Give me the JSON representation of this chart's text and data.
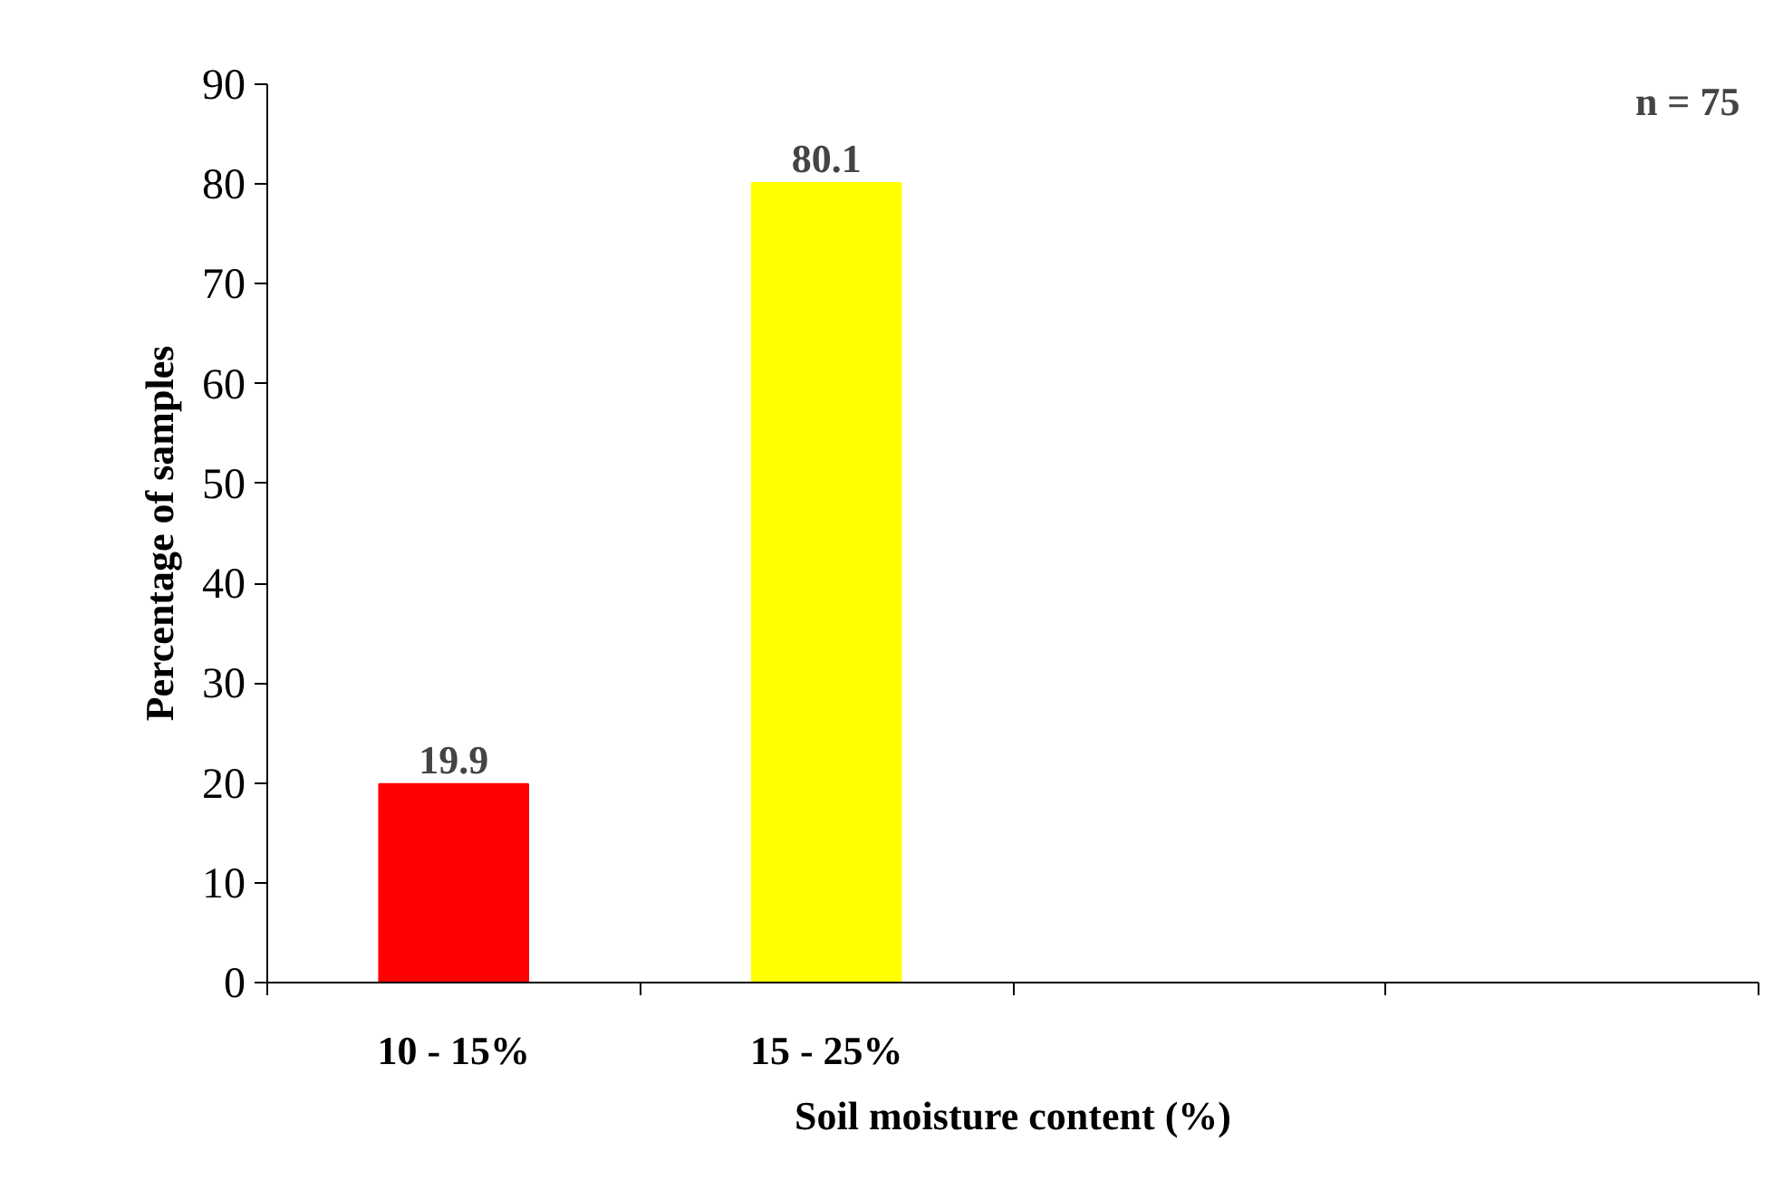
{
  "chart_data": {
    "type": "bar",
    "xlabel": "Soil moisture content (%)",
    "ylabel": "Percentage of samples",
    "categories": [
      "10 - 15%",
      "15 - 25%",
      null,
      null
    ],
    "values": [
      19.9,
      80.1,
      null,
      null
    ],
    "colors": [
      "#ff0000",
      "#ffff00",
      "#ffffff",
      "#ffffff"
    ],
    "ylim": [
      0,
      90
    ],
    "yticks": [
      0,
      10,
      20,
      30,
      40,
      50,
      60,
      70,
      80,
      90
    ],
    "data_labels": true,
    "grid": false,
    "annotations": [
      "n = 75"
    ]
  }
}
